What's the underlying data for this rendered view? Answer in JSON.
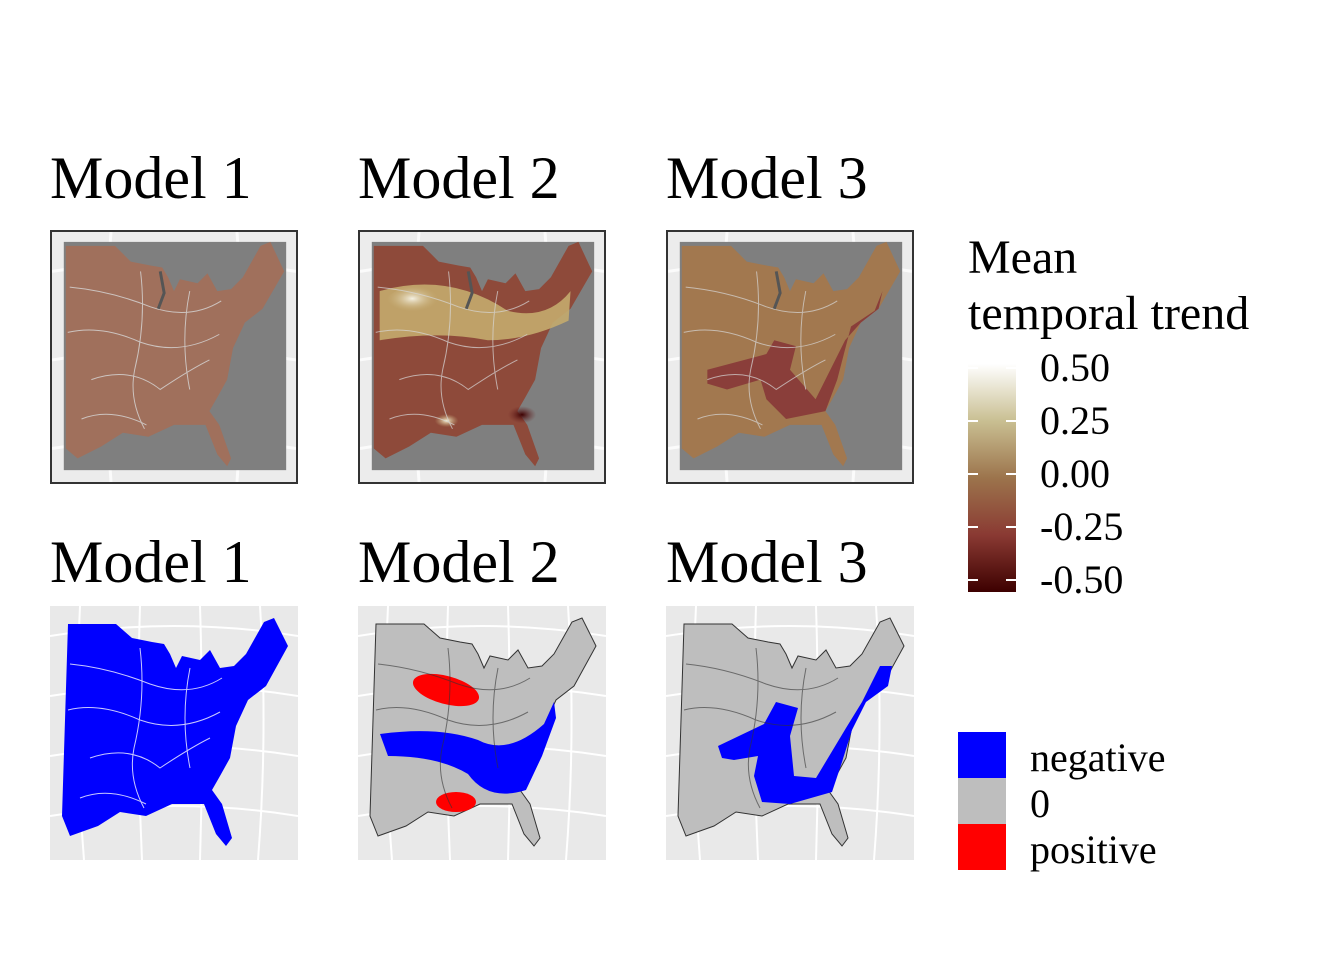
{
  "panels_top": [
    {
      "title": "Model 1",
      "fill_type": "gradient",
      "base_color": "#a0705c"
    },
    {
      "title": "Model 2",
      "fill_type": "gradient",
      "base_color": "#8e4a3a"
    },
    {
      "title": "Model 3",
      "fill_type": "gradient",
      "base_color": "#a2784f"
    }
  ],
  "panels_bottom": [
    {
      "title": "Model 1",
      "base_color": "#0000ff"
    },
    {
      "title": "Model 2",
      "base_color": "#bebebe"
    },
    {
      "title": "Model 3",
      "base_color": "#bebebe"
    }
  ],
  "legend_continuous": {
    "title_line1": "Mean",
    "title_line2": "temporal trend",
    "ticks": [
      "0.50",
      "0.25",
      "0.00",
      "-0.25",
      "-0.50"
    ],
    "colors": [
      "#ffffff",
      "#c9bf92",
      "#9c744c",
      "#8a3a33",
      "#3d0000"
    ]
  },
  "legend_categorical": {
    "items": [
      {
        "label": "negative",
        "color": "#0000ff"
      },
      {
        "label": "0",
        "color": "#bebebe"
      },
      {
        "label": "positive",
        "color": "#ff0000"
      }
    ]
  },
  "colors": {
    "ocean": "#7f7f7f",
    "lake": "#8a8a8a",
    "graticule": "#ffffff",
    "region_line": "#d8d8d8"
  }
}
